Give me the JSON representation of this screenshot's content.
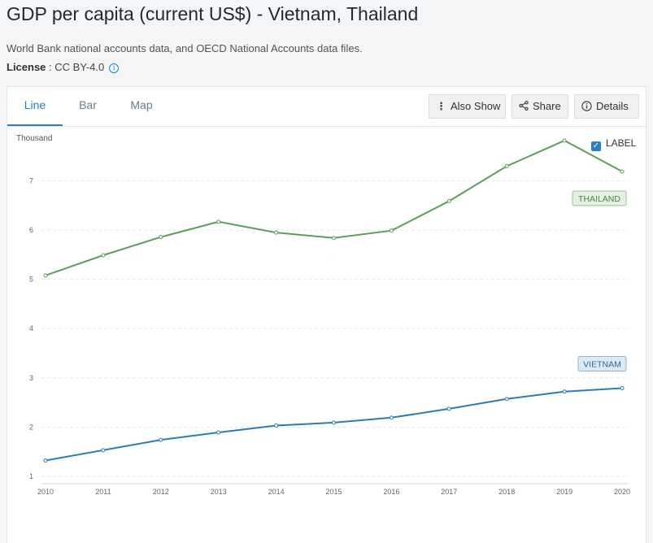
{
  "header": {
    "title": "GDP per capita (current US$) - Vietnam, Thailand",
    "source": "World Bank national accounts data, and OECD National Accounts data files.",
    "license_label": "License",
    "license_sep": " : ",
    "license_value": "CC BY-4.0"
  },
  "tabs": [
    {
      "label": "Line",
      "active": true
    },
    {
      "label": "Bar",
      "active": false
    },
    {
      "label": "Map",
      "active": false
    }
  ],
  "toolbar": {
    "also_show": "Also Show",
    "share": "Share",
    "details": "Details"
  },
  "label_toggle": {
    "label": "LABEL",
    "checked": true
  },
  "colors": {
    "thailand": "#5f9e5a",
    "vietnam": "#2f7bb5",
    "accent": "#2a7fc9"
  },
  "chart_data": {
    "type": "line",
    "ylabel": "Thousand",
    "x": [
      2010,
      2011,
      2012,
      2013,
      2014,
      2015,
      2016,
      2017,
      2018,
      2019,
      2020
    ],
    "y_ticks": [
      1,
      2,
      3,
      4,
      5,
      6,
      7
    ],
    "ylim": [
      0.85,
      7.95
    ],
    "grid": true,
    "series": [
      {
        "name": "THAILAND",
        "values": [
          5.08,
          5.49,
          5.86,
          6.17,
          5.95,
          5.84,
          5.99,
          6.59,
          7.3,
          7.82,
          7.19
        ]
      },
      {
        "name": "VIETNAM",
        "values": [
          1.32,
          1.53,
          1.74,
          1.89,
          2.03,
          2.09,
          2.19,
          2.37,
          2.57,
          2.72,
          2.79
        ]
      }
    ]
  }
}
